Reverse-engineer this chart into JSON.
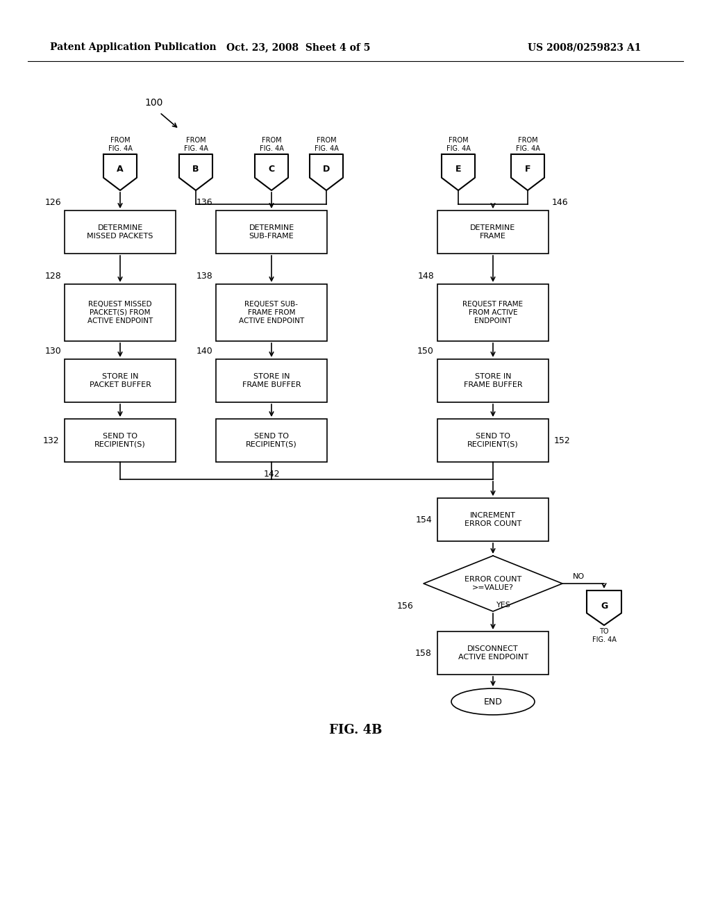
{
  "title_left": "Patent Application Publication",
  "title_mid": "Oct. 23, 2008  Sheet 4 of 5",
  "title_right": "US 2008/0259823 A1",
  "fig_label": "FIG. 4B",
  "fig_number": "100",
  "background_color": "#ffffff"
}
